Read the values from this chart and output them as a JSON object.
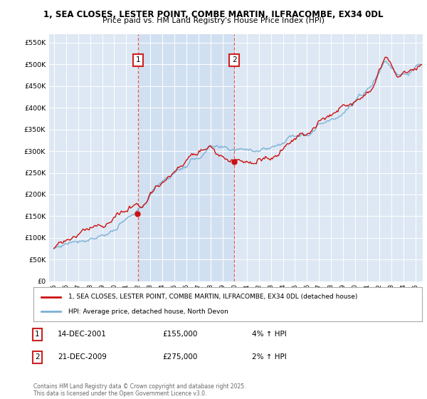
{
  "title1": "1, SEA CLOSES, LESTER POINT, COMBE MARTIN, ILFRACOMBE, EX34 0DL",
  "title2": "Price paid vs. HM Land Registry's House Price Index (HPI)",
  "ylabel_ticks": [
    "£0",
    "£50K",
    "£100K",
    "£150K",
    "£200K",
    "£250K",
    "£300K",
    "£350K",
    "£400K",
    "£450K",
    "£500K",
    "£550K"
  ],
  "ytick_values": [
    0,
    50000,
    100000,
    150000,
    200000,
    250000,
    300000,
    350000,
    400000,
    450000,
    500000,
    550000
  ],
  "ylim": [
    0,
    570000
  ],
  "xlim_start": 1994.6,
  "xlim_end": 2025.6,
  "xtick_years": [
    1995,
    1996,
    1997,
    1998,
    1999,
    2000,
    2001,
    2002,
    2003,
    2004,
    2005,
    2006,
    2007,
    2008,
    2009,
    2010,
    2011,
    2012,
    2013,
    2014,
    2015,
    2016,
    2017,
    2018,
    2019,
    2020,
    2021,
    2022,
    2023,
    2024,
    2025
  ],
  "sale1_year": 2001.96,
  "sale1_price": 155000,
  "sale2_year": 2009.96,
  "sale2_price": 275000,
  "hpi_color": "#7ab0d4",
  "price_color": "#cc1111",
  "vline_color": "#dd4444",
  "shade_color": "#ccddf0",
  "annotation_box_color": "#cc2222",
  "background_color": "#ffffff",
  "plot_bg_color": "#dde8f4",
  "legend_label1": "1, SEA CLOSES, LESTER POINT, COMBE MARTIN, ILFRACOMBE, EX34 0DL (detached house)",
  "legend_label2": "HPI: Average price, detached house, North Devon",
  "sale1_label": "1",
  "sale2_label": "2",
  "sale1_date": "14-DEC-2001",
  "sale1_pricetxt": "£155,000",
  "sale1_hpi": "4% ↑ HPI",
  "sale2_date": "21-DEC-2009",
  "sale2_pricetxt": "£275,000",
  "sale2_hpi": "2% ↑ HPI",
  "footer": "Contains HM Land Registry data © Crown copyright and database right 2025.\nThis data is licensed under the Open Government Licence v3.0."
}
